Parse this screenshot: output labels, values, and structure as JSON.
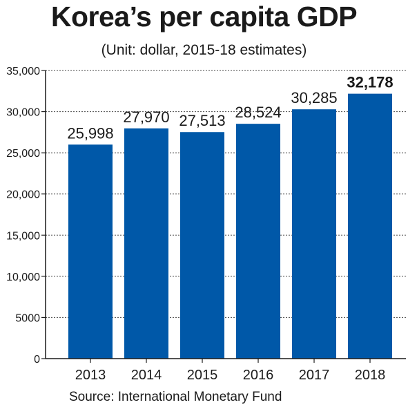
{
  "chart_data": {
    "type": "bar",
    "title": "Korea’s per capita GDP",
    "subtitle": "(Unit: dollar, 2015-18 estimates)",
    "categories": [
      "2013",
      "2014",
      "2015",
      "2016",
      "2017",
      "2018"
    ],
    "values": [
      25998,
      27970,
      27513,
      28524,
      30285,
      32178
    ],
    "data_labels": [
      "25,998",
      "27,970",
      "27,513",
      "28,524",
      "30,285",
      "32,178"
    ],
    "highlight_index": 5,
    "ylim": [
      0,
      35000
    ],
    "yticks": [
      0,
      5000,
      10000,
      15000,
      20000,
      25000,
      30000,
      35000
    ],
    "ytick_labels": [
      "0",
      "5000",
      "10,000",
      "15,000",
      "20,000",
      "25,000",
      "30,000",
      "35,000"
    ],
    "grid": true,
    "bar_color": "#0058a8",
    "source": "Source: International Monetary Fund"
  }
}
